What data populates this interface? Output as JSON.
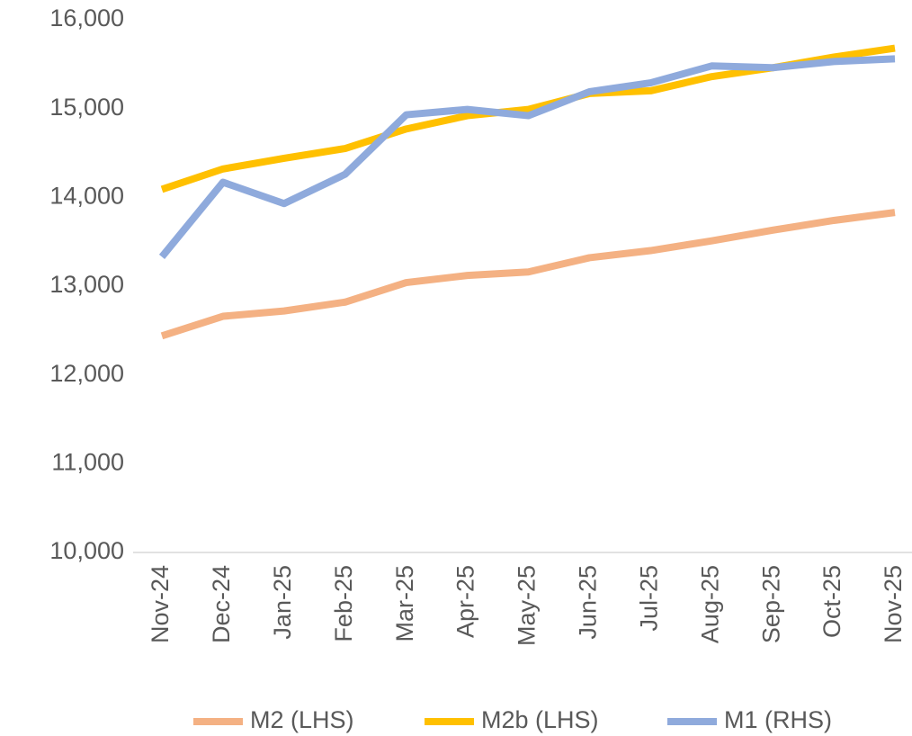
{
  "chart_data": {
    "type": "line",
    "categories": [
      "Nov-24",
      "Dec-24",
      "Jan-25",
      "Feb-25",
      "Mar-25",
      "Apr-25",
      "May-25",
      "Jun-25",
      "Jul-25",
      "Aug-25",
      "Sep-25",
      "Oct-25",
      "Nov-25"
    ],
    "series": [
      {
        "name": "M2 (LHS)",
        "color": "#f4b183",
        "values": [
          12440,
          12660,
          12720,
          12820,
          13040,
          13120,
          13160,
          13320,
          13400,
          13510,
          13630,
          13740,
          13830
        ]
      },
      {
        "name": "M2b (LHS)",
        "color": "#ffc000",
        "values": [
          14090,
          14320,
          14440,
          14550,
          14770,
          14920,
          14990,
          15170,
          15200,
          15360,
          15460,
          15580,
          15680
        ]
      },
      {
        "name": "M1 (RHS)",
        "color": "#8faadc",
        "values": [
          13330,
          14170,
          13930,
          14260,
          14930,
          14990,
          14920,
          15190,
          15290,
          15480,
          15460,
          15530,
          15560
        ]
      }
    ],
    "ylim": [
      10000,
      16000
    ],
    "yticks": [
      {
        "value": 10000,
        "label": "10,000"
      },
      {
        "value": 11000,
        "label": "11,000"
      },
      {
        "value": 12000,
        "label": "12,000"
      },
      {
        "value": 13000,
        "label": "13,000"
      },
      {
        "value": 14000,
        "label": "14,000"
      },
      {
        "value": 15000,
        "label": "15,000"
      },
      {
        "value": 16000,
        "label": "16,000"
      }
    ],
    "grid": false,
    "legend": "bottom"
  }
}
